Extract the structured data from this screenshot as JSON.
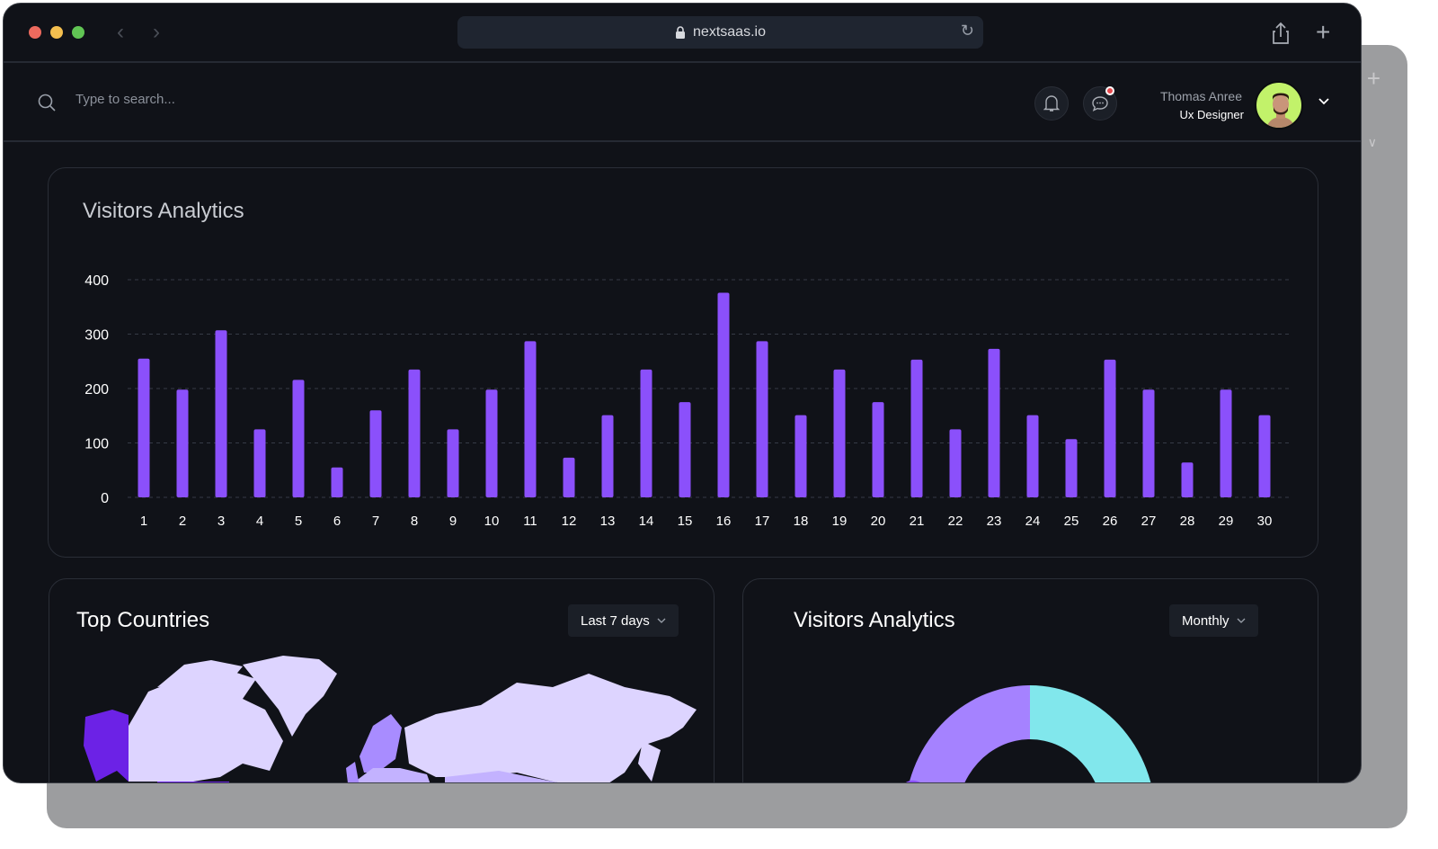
{
  "browser": {
    "url": "nextsaas.io",
    "colors": {
      "close": "#ed6a5e",
      "minimize": "#f4bf4f",
      "maximize": "#61c554"
    }
  },
  "header": {
    "search_placeholder": "Type to search...",
    "user_name": "Thomas Anree",
    "user_role": "Ux Designer",
    "has_unread_messages": true
  },
  "main_chart": {
    "title": "Visitors Analytics"
  },
  "top_countries": {
    "title": "Top Countries",
    "period": "Last 7 days"
  },
  "visitors_donut": {
    "title": "Visitors Analytics",
    "period": "Monthly"
  },
  "chart_data": [
    {
      "type": "bar",
      "title": "Visitors Analytics",
      "categories": [
        "1",
        "2",
        "3",
        "4",
        "5",
        "6",
        "7",
        "8",
        "9",
        "10",
        "11",
        "12",
        "13",
        "14",
        "15",
        "16",
        "17",
        "18",
        "19",
        "20",
        "21",
        "22",
        "23",
        "24",
        "25",
        "26",
        "27",
        "28",
        "29",
        "30"
      ],
      "values": [
        255,
        198,
        307,
        125,
        216,
        55,
        160,
        235,
        125,
        198,
        287,
        73,
        151,
        235,
        175,
        376,
        287,
        151,
        235,
        175,
        253,
        125,
        273,
        151,
        107,
        253,
        198,
        64,
        198,
        151
      ],
      "yticks": [
        "0",
        "100",
        "200",
        "300",
        "400"
      ],
      "ylim": [
        0,
        400
      ],
      "grid": true,
      "color": "#8b50fb"
    },
    {
      "type": "pie",
      "title": "Visitors Analytics",
      "colors": [
        "#a582ff",
        "#81e7ec",
        "#8b50fb"
      ]
    }
  ]
}
